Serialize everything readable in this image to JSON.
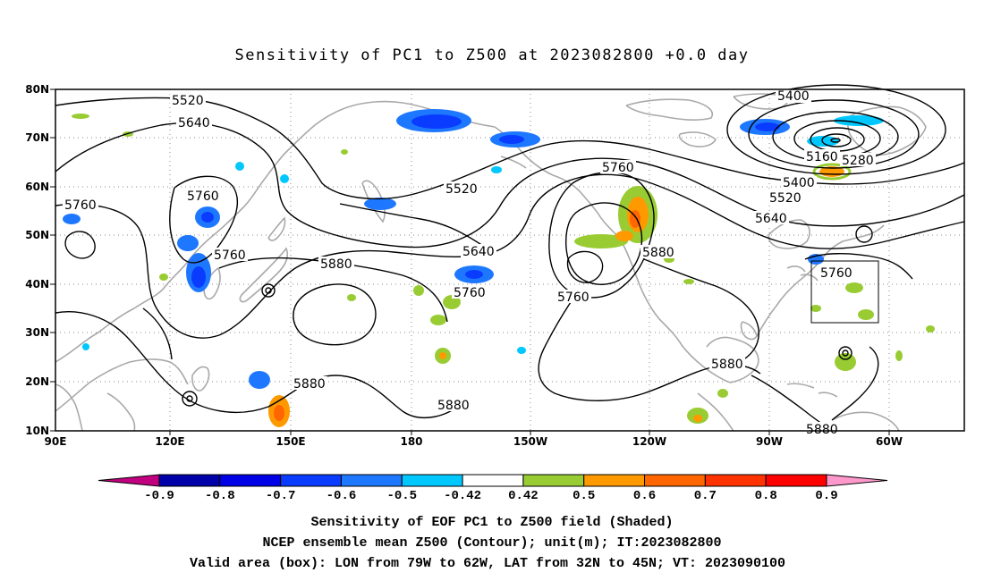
{
  "title": "Sensitivity of PC1 to Z500 at 2023082800 +0.0 day",
  "lat_ticks": [
    "80N",
    "70N",
    "60N",
    "50N",
    "40N",
    "30N",
    "20N",
    "10N"
  ],
  "lon_ticks": [
    "90E",
    "120E",
    "150E",
    "180",
    "150W",
    "120W",
    "90W",
    "60W"
  ],
  "contour_labels": {
    "c5520_top": "5520",
    "c5640_top": "5640",
    "c5760_w": "5760",
    "c5760_left": "5760",
    "c5760_mid": "5760",
    "c5880_a": "5880",
    "c5880_b": "5880",
    "c5880_c": "5880",
    "c5520_mid": "5520",
    "c5640_mid": "5640",
    "c5760_pac": "5760",
    "c5760_low": "5760",
    "c5760_top": "5760",
    "c5880_ec": "5880",
    "c5880_gulf": "5880",
    "c5880_bot": "5880",
    "c5400_top": "5400",
    "c5160": "5160",
    "c5280": "5280",
    "c5400_b": "5400",
    "c5520_b": "5520",
    "c5640_b": "5640",
    "c5760_box": "5760"
  },
  "colorbar": {
    "labels": [
      "-0.9",
      "-0.8",
      "-0.7",
      "-0.6",
      "-0.5",
      "-0.42",
      "0.42",
      "0.5",
      "0.6",
      "0.7",
      "0.8",
      "0.9"
    ],
    "colors": [
      "#c1007f",
      "#0000a8",
      "#0000e6",
      "#0a3cff",
      "#1e78ff",
      "#00c8ff",
      "#ffffff",
      "#99cc33",
      "#ff9900",
      "#ff6600",
      "#ff3300",
      "#ff0000",
      "#ff99cc"
    ]
  },
  "captions": [
    "Sensitivity of EOF PC1 to Z500 field (Shaded)",
    "NCEP ensemble mean Z500 (Contour); unit(m); IT:2023082800",
    "Valid area (box): LON from 79W to 62W, LAT from 32N to 45N; VT: 2023090100"
  ]
}
